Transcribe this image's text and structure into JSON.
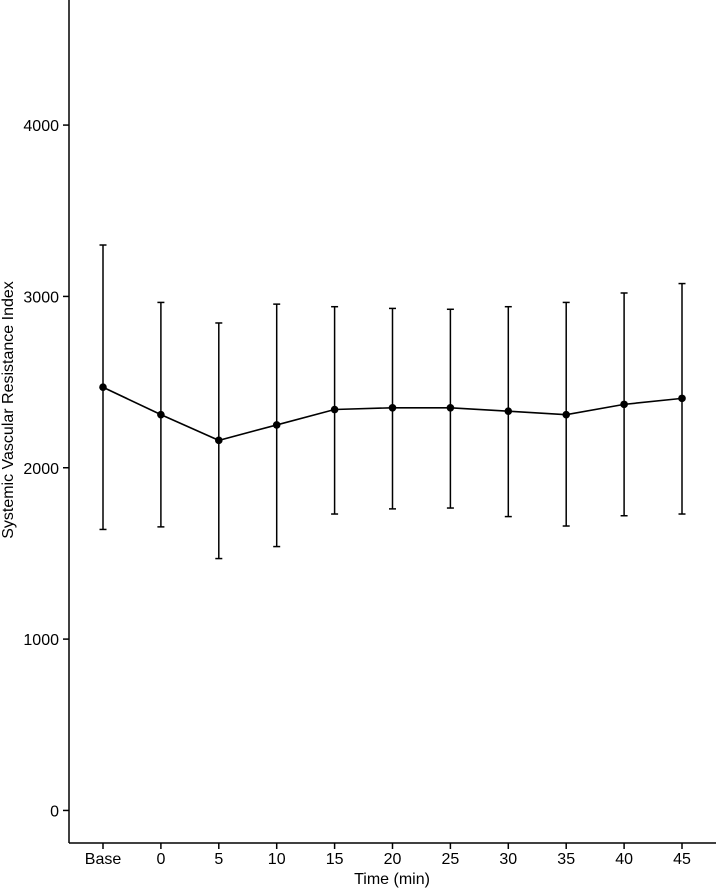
{
  "chart_data": {
    "type": "line",
    "title": "",
    "xlabel": "Time (min)",
    "ylabel": "Systemic Vascular Resistance Index",
    "categories": [
      "Base",
      "0",
      "5",
      "10",
      "15",
      "20",
      "25",
      "30",
      "35",
      "40",
      "45"
    ],
    "yticks": [
      0,
      1000,
      2000,
      3000,
      4000
    ],
    "ylim": [
      -190,
      4730
    ],
    "grid": false,
    "legend": "none",
    "series": [
      {
        "values": [
          2470,
          2310,
          2160,
          2250,
          2340,
          2350,
          2350,
          2330,
          2310,
          2370,
          2405
        ],
        "error_low": [
          1640,
          1655,
          1470,
          1540,
          1730,
          1760,
          1765,
          1715,
          1660,
          1720,
          1730
        ],
        "error_high": [
          3300,
          2965,
          2845,
          2955,
          2940,
          2930,
          2925,
          2940,
          2965,
          3020,
          3075
        ]
      }
    ],
    "colors": {
      "line": "#000000",
      "axis": "#000000"
    }
  }
}
